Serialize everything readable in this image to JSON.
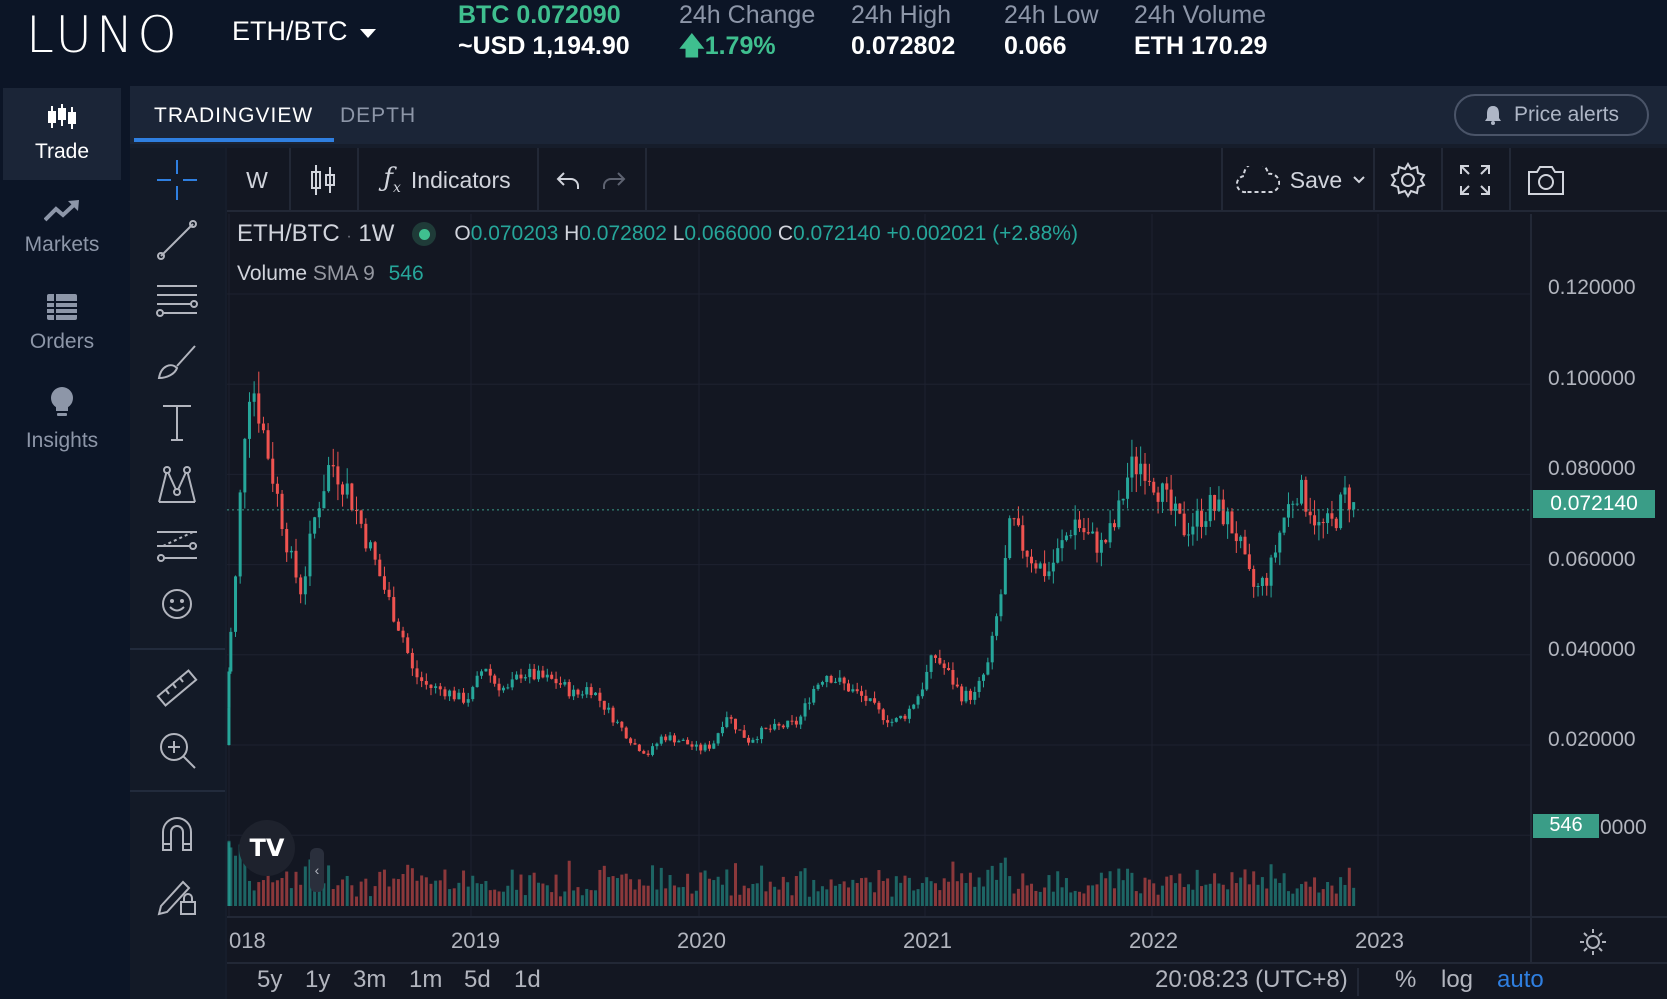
{
  "header": {
    "logo": "LUNO",
    "pair": "ETH/BTC",
    "price_line1": "BTC 0.072090",
    "price_line2": "~USD 1,194.90",
    "change_label": "24h Change",
    "change_value": "1.79%",
    "high_label": "24h High",
    "high_value": "0.072802",
    "low_label": "24h Low",
    "low_value": "0.066",
    "volume_label": "24h Volume",
    "volume_value": "ETH 170.29"
  },
  "sidebar": {
    "items": [
      {
        "label": "Trade",
        "icon": "candles-icon"
      },
      {
        "label": "Markets",
        "icon": "trend-icon"
      },
      {
        "label": "Orders",
        "icon": "list-icon"
      },
      {
        "label": "Insights",
        "icon": "bulb-icon"
      }
    ]
  },
  "tabs": [
    {
      "label": "TRADINGVIEW",
      "active": true
    },
    {
      "label": "DEPTH",
      "active": false
    }
  ],
  "price_alerts": "Price alerts",
  "toolbar": {
    "interval": "W",
    "indicators": "Indicators",
    "save": "Save"
  },
  "legend": {
    "symbol": "ETH/BTC",
    "dot": "·",
    "interval": "1W",
    "o_label": "O",
    "o": "0.070203",
    "h_label": "H",
    "h": "0.072802",
    "l_label": "L",
    "l": "0.066000",
    "c_label": "C",
    "c": "0.072140",
    "change": "+0.002021 (+2.88%)",
    "volume_label": "Volume",
    "sma_label": "SMA 9",
    "volume_value": "546"
  },
  "price_scale": [
    "0.120000",
    "0.100000",
    "0.080000",
    "0.060000",
    "0.040000",
    "0.020000"
  ],
  "current_price": "0.072140",
  "volume_badge": "546",
  "volume_badge_trail": "0000",
  "time_scale": [
    "018",
    "2019",
    "2020",
    "2021",
    "2022",
    "2023"
  ],
  "ranges": [
    "5y",
    "1y",
    "3m",
    "1m",
    "5d",
    "1d"
  ],
  "clock": "20:08:23 (UTC+8)",
  "scale_options": [
    "%",
    "log",
    "auto"
  ],
  "colors": {
    "up": "#26a69a",
    "down": "#ef5350",
    "accent": "#2f7fe0",
    "price_badge": "#3a9d87"
  },
  "chart_data": {
    "type": "candlestick",
    "interval": "1W",
    "ylim": [
      0,
      0.13
    ],
    "x_range": [
      2017.95,
      2023.0
    ],
    "close_path": [
      [
        2017.95,
        0.02
      ],
      [
        2018.02,
        0.05
      ],
      [
        2018.06,
        0.088
      ],
      [
        2018.09,
        0.102
      ],
      [
        2018.14,
        0.09
      ],
      [
        2018.2,
        0.075
      ],
      [
        2018.26,
        0.06
      ],
      [
        2018.3,
        0.054
      ],
      [
        2018.36,
        0.072
      ],
      [
        2018.42,
        0.083
      ],
      [
        2018.48,
        0.078
      ],
      [
        2018.54,
        0.07
      ],
      [
        2018.6,
        0.061
      ],
      [
        2018.66,
        0.052
      ],
      [
        2018.72,
        0.044
      ],
      [
        2018.76,
        0.036
      ],
      [
        2018.82,
        0.033
      ],
      [
        2018.9,
        0.032
      ],
      [
        2018.96,
        0.03
      ],
      [
        2019.0,
        0.031
      ],
      [
        2019.06,
        0.038
      ],
      [
        2019.1,
        0.034
      ],
      [
        2019.16,
        0.032
      ],
      [
        2019.22,
        0.036
      ],
      [
        2019.3,
        0.035
      ],
      [
        2019.38,
        0.034
      ],
      [
        2019.46,
        0.031
      ],
      [
        2019.52,
        0.033
      ],
      [
        2019.58,
        0.029
      ],
      [
        2019.64,
        0.025
      ],
      [
        2019.72,
        0.02
      ],
      [
        2019.78,
        0.018
      ],
      [
        2019.84,
        0.022
      ],
      [
        2019.92,
        0.021
      ],
      [
        2020.0,
        0.019
      ],
      [
        2020.06,
        0.02
      ],
      [
        2020.12,
        0.027
      ],
      [
        2020.18,
        0.023
      ],
      [
        2020.22,
        0.021
      ],
      [
        2020.28,
        0.023
      ],
      [
        2020.36,
        0.024
      ],
      [
        2020.44,
        0.025
      ],
      [
        2020.5,
        0.032
      ],
      [
        2020.56,
        0.036
      ],
      [
        2020.62,
        0.034
      ],
      [
        2020.68,
        0.032
      ],
      [
        2020.74,
        0.03
      ],
      [
        2020.8,
        0.027
      ],
      [
        2020.86,
        0.025
      ],
      [
        2020.92,
        0.027
      ],
      [
        2020.98,
        0.032
      ],
      [
        2021.04,
        0.04
      ],
      [
        2021.1,
        0.036
      ],
      [
        2021.16,
        0.031
      ],
      [
        2021.22,
        0.031
      ],
      [
        2021.28,
        0.038
      ],
      [
        2021.34,
        0.055
      ],
      [
        2021.38,
        0.07
      ],
      [
        2021.42,
        0.065
      ],
      [
        2021.48,
        0.061
      ],
      [
        2021.54,
        0.058
      ],
      [
        2021.6,
        0.064
      ],
      [
        2021.66,
        0.07
      ],
      [
        2021.72,
        0.066
      ],
      [
        2021.78,
        0.064
      ],
      [
        2021.84,
        0.069
      ],
      [
        2021.9,
        0.081
      ],
      [
        2021.96,
        0.083
      ],
      [
        2022.02,
        0.078
      ],
      [
        2022.08,
        0.072
      ],
      [
        2022.14,
        0.068
      ],
      [
        2022.2,
        0.07
      ],
      [
        2022.26,
        0.073
      ],
      [
        2022.32,
        0.071
      ],
      [
        2022.38,
        0.066
      ],
      [
        2022.42,
        0.058
      ],
      [
        2022.46,
        0.054
      ],
      [
        2022.52,
        0.058
      ],
      [
        2022.58,
        0.07
      ],
      [
        2022.64,
        0.077
      ],
      [
        2022.7,
        0.073
      ],
      [
        2022.74,
        0.068
      ],
      [
        2022.8,
        0.069
      ],
      [
        2022.86,
        0.076
      ],
      [
        2022.9,
        0.072
      ]
    ],
    "current": 0.07214
  }
}
